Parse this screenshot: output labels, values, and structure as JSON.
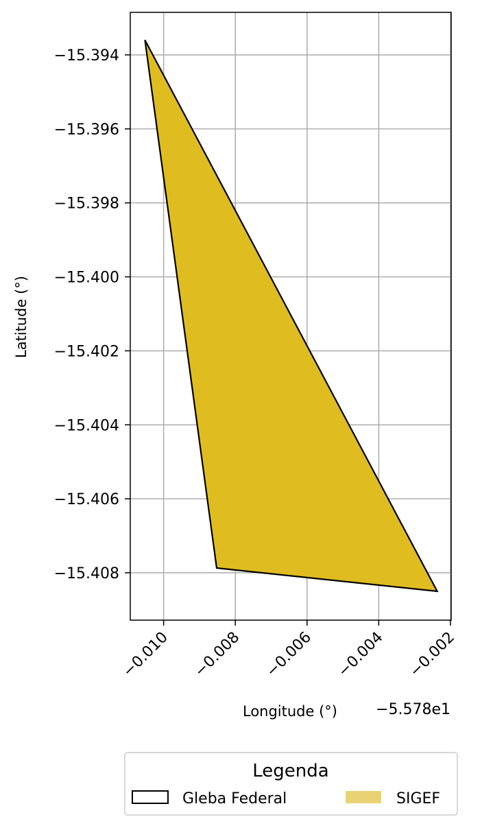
{
  "chart_data": {
    "type": "map",
    "title": "",
    "xlabel": "Longitude (°)",
    "ylabel": "Latitude (°)",
    "x_offset_label": "−5.578e1",
    "x_offset": -55.78,
    "xlim": [
      -0.01093,
      -0.00198
    ],
    "ylim": [
      -15.40928,
      -15.39285
    ],
    "x_ticks": [
      -0.01,
      -0.008,
      -0.006,
      -0.004,
      -0.002
    ],
    "x_tick_labels": [
      "−0.010",
      "−0.008",
      "−0.006",
      "−0.004",
      "−0.002"
    ],
    "y_ticks": [
      -15.394,
      -15.396,
      -15.398,
      -15.4,
      -15.402,
      -15.404,
      -15.406,
      -15.408
    ],
    "y_tick_labels": [
      "−15.394",
      "−15.396",
      "−15.398",
      "−15.400",
      "−15.402",
      "−15.404",
      "−15.406",
      "−15.408"
    ],
    "grid": true,
    "series": [
      {
        "name": "SIGEF",
        "geometry": "polygon",
        "color": "#dfbd21",
        "legend_color": "#e8d274",
        "edge_color": "#000000",
        "coordinates": [
          [
            -0.01052,
            -15.3936
          ],
          [
            -0.00237,
            -15.4085
          ],
          [
            -0.00852,
            -15.40787
          ]
        ]
      },
      {
        "name": "Gleba Federal",
        "geometry": "outline",
        "edge_color": "#000000"
      }
    ],
    "legend": {
      "title": "Legenda",
      "placement": "bottom-center",
      "entries": [
        {
          "label": "Gleba Federal",
          "swatch": "outline"
        },
        {
          "label": "SIGEF",
          "swatch": "fill"
        }
      ]
    }
  }
}
